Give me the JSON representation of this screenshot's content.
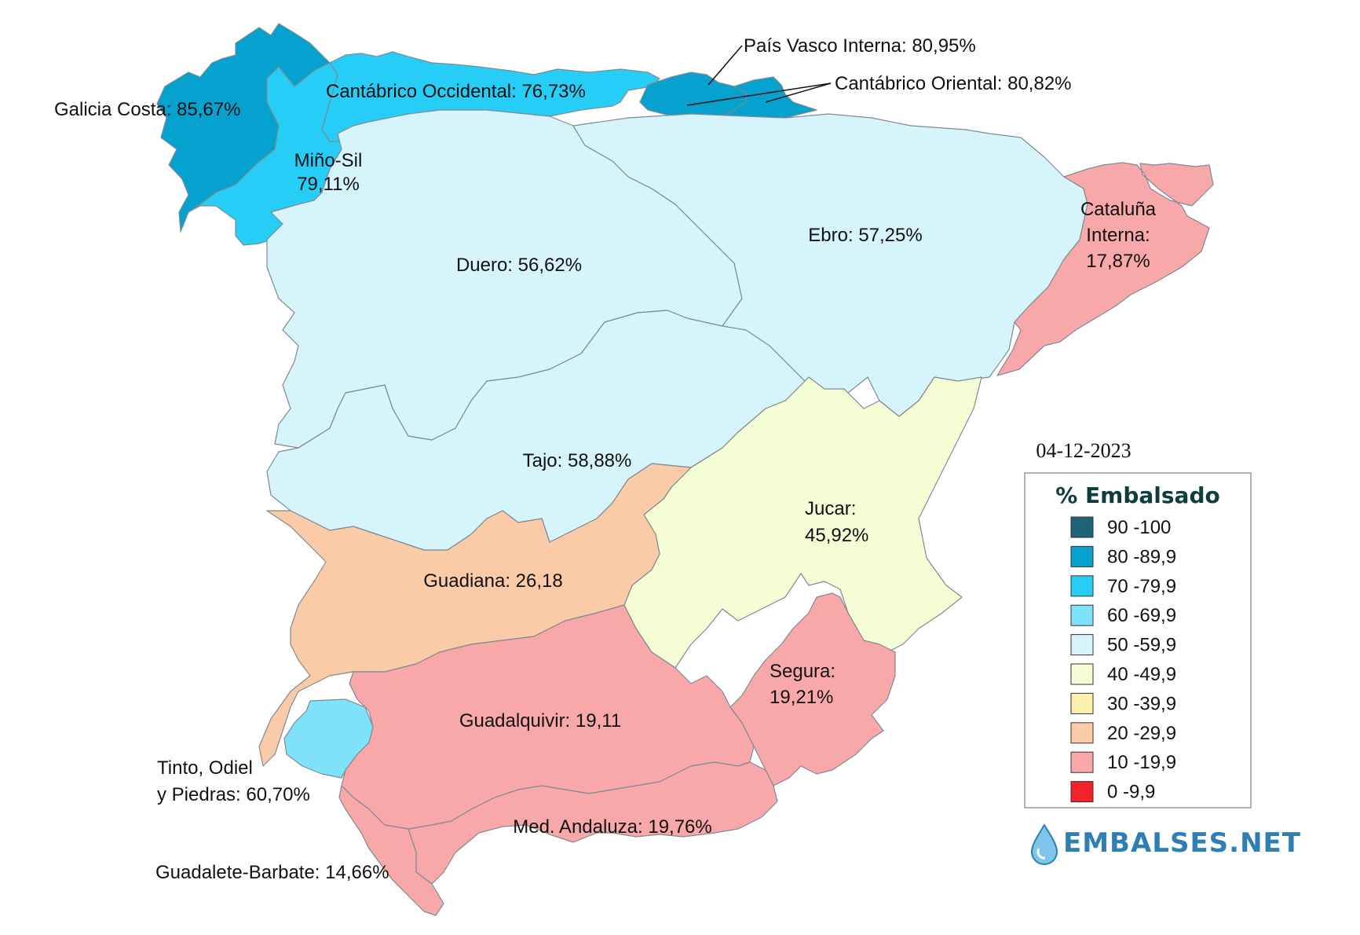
{
  "date": "04-12-2023",
  "legend": {
    "title": "% Embalsado",
    "items": [
      {
        "label": "90 -100",
        "color": "#1f6377"
      },
      {
        "label": "80 -89,9",
        "color": "#05a1cf"
      },
      {
        "label": "70 -79,9",
        "color": "#26cdf7"
      },
      {
        "label": "60 -69,9",
        "color": "#7fe2fb"
      },
      {
        "label": "50 -59,9",
        "color": "#d6f4fc"
      },
      {
        "label": "40 -49,9",
        "color": "#f5fdd5"
      },
      {
        "label": "30 -39,9",
        "color": "#fdefae"
      },
      {
        "label": "20 -29,9",
        "color": "#fbcba8"
      },
      {
        "label": "10 -19,9",
        "color": "#f9a8aa"
      },
      {
        "label": "0 -9,9",
        "color": "#f2222b"
      }
    ]
  },
  "brand": "EMBALSES.NET",
  "basins": [
    {
      "key": "galicia",
      "lines": [
        "Galicia Costa: 85,67%"
      ],
      "color": "#05a1cf"
    },
    {
      "key": "minosil",
      "lines": [
        "Miño-Sil",
        "79,11%"
      ],
      "color": "#26cdf7"
    },
    {
      "key": "cantocc",
      "lines": [
        "Cantábrico Occidental: 76,73%"
      ],
      "color": "#26cdf7"
    },
    {
      "key": "paisvasco",
      "lines": [
        "País Vasco Interna: 80,95%"
      ],
      "color": "#05a1cf"
    },
    {
      "key": "cantori",
      "lines": [
        "Cantábrico Oriental: 80,82%"
      ],
      "color": "#05a1cf"
    },
    {
      "key": "duero",
      "lines": [
        "Duero: 56,62%"
      ],
      "color": "#d6f4fc"
    },
    {
      "key": "ebro",
      "lines": [
        "Ebro: 57,25%"
      ],
      "color": "#d6f4fc"
    },
    {
      "key": "cataluna",
      "lines": [
        "Cataluña",
        "Interna:",
        "17,87%"
      ],
      "color": "#f9a8aa"
    },
    {
      "key": "tajo",
      "lines": [
        "Tajo: 58,88%"
      ],
      "color": "#d6f4fc"
    },
    {
      "key": "jucar",
      "lines": [
        "Jucar:",
        "45,92%"
      ],
      "color": "#f5fdd5"
    },
    {
      "key": "guadiana",
      "lines": [
        "Guadiana: 26,18"
      ],
      "color": "#fbcba8"
    },
    {
      "key": "segura",
      "lines": [
        "Segura:",
        "19,21%"
      ],
      "color": "#f9a8aa"
    },
    {
      "key": "guadalquivir",
      "lines": [
        "Guadalquivir: 19,11"
      ],
      "color": "#f9a8aa"
    },
    {
      "key": "tinto",
      "lines": [
        "Tinto, Odiel",
        "y Piedras: 60,70%"
      ],
      "color": "#7fe2fb"
    },
    {
      "key": "medandaluza",
      "lines": [
        "Med. Andaluza: 19,76%"
      ],
      "color": "#f9a8aa"
    },
    {
      "key": "guadalete",
      "lines": [
        "Guadalete-Barbate: 14,66%"
      ],
      "color": "#f9a8aa"
    }
  ]
}
